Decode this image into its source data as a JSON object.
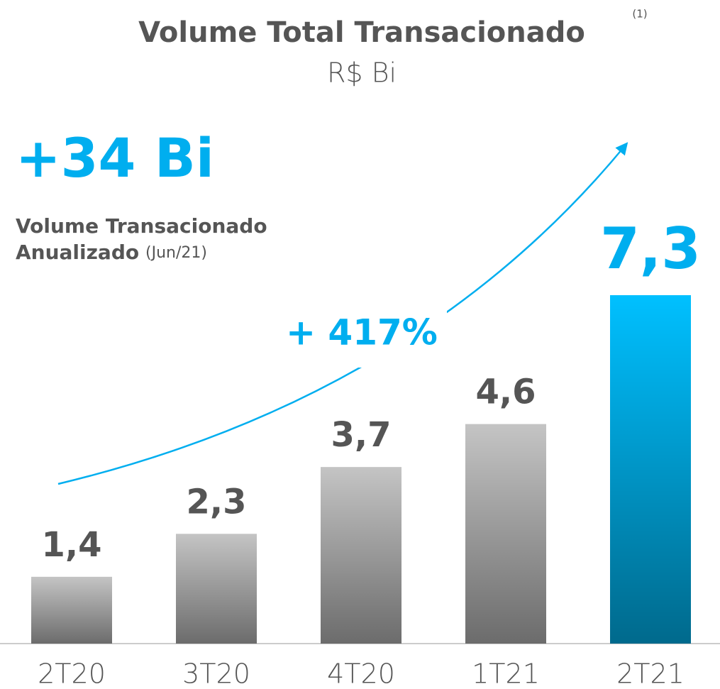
{
  "chart_data": {
    "type": "bar",
    "title": "Volume Total Transacionado",
    "title_note": "(1)",
    "subtitle": "R$ Bi",
    "categories": [
      "2T20",
      "3T20",
      "4T20",
      "1T21",
      "2T21"
    ],
    "values": [
      1.4,
      2.3,
      3.7,
      4.6,
      7.3
    ],
    "value_labels": [
      "1,4",
      "2,3",
      "3,7",
      "4,6",
      "7,3"
    ],
    "colors": [
      "#c4c4c4",
      "#c4c4c4",
      "#c4c4c4",
      "#c4c4c4",
      "#00c0ff"
    ],
    "annotations": {
      "headline": "+34 Bi",
      "headline_line1": "Volume Transacionado",
      "headline_line2": "Anualizado",
      "headline_note": "(Jun/21)",
      "growth": "+ 417%"
    }
  }
}
